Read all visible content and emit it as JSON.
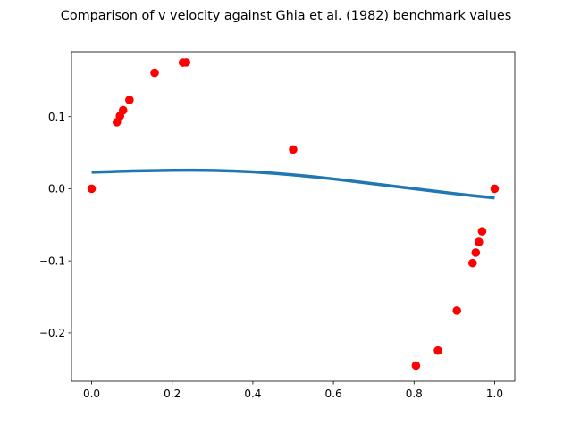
{
  "chart_data": {
    "type": "scatter",
    "title": "Comparison of v velocity against Ghia et al. (1982) benchmark values",
    "xlabel": "",
    "ylabel": "",
    "xlim": [
      -0.05,
      1.05
    ],
    "ylim": [
      -0.267,
      0.19
    ],
    "xticks": [
      0.0,
      0.2,
      0.4,
      0.6,
      0.8,
      1.0
    ],
    "xtick_labels": [
      "0.0",
      "0.2",
      "0.4",
      "0.6",
      "0.8",
      "1.0"
    ],
    "yticks": [
      -0.2,
      -0.1,
      0.0,
      0.1
    ],
    "ytick_labels": [
      "−0.2",
      "−0.1",
      "0.0",
      "0.1"
    ],
    "grid": false,
    "series": [
      {
        "kind": "line",
        "color": "#1f77b4",
        "x": [
          0.0,
          0.05,
          0.1,
          0.15,
          0.2,
          0.25,
          0.3,
          0.35,
          0.4,
          0.45,
          0.5,
          0.55,
          0.6,
          0.65,
          0.7,
          0.75,
          0.8,
          0.85,
          0.9,
          0.95,
          1.0
        ],
        "y": [
          0.023,
          0.0238,
          0.0246,
          0.0252,
          0.0256,
          0.0257,
          0.0254,
          0.0246,
          0.0234,
          0.0216,
          0.0193,
          0.0166,
          0.0136,
          0.0103,
          0.0069,
          0.0034,
          0.0,
          -0.0034,
          -0.0067,
          -0.0098,
          -0.0127
        ]
      },
      {
        "kind": "scatter",
        "color": "#ff0000",
        "x": [
          0.0,
          0.0625,
          0.0703,
          0.0781,
          0.0938,
          0.1563,
          0.2266,
          0.2344,
          0.5,
          0.8047,
          0.8594,
          0.9063,
          0.9453,
          0.9531,
          0.9609,
          0.9688,
          1.0
        ],
        "y": [
          0.0,
          0.0923,
          0.1009,
          0.1089,
          0.1232,
          0.1608,
          0.1751,
          0.1753,
          0.0545,
          -0.2453,
          -0.2245,
          -0.1691,
          -0.1031,
          -0.0886,
          -0.0739,
          -0.0591,
          0.0
        ]
      }
    ]
  }
}
